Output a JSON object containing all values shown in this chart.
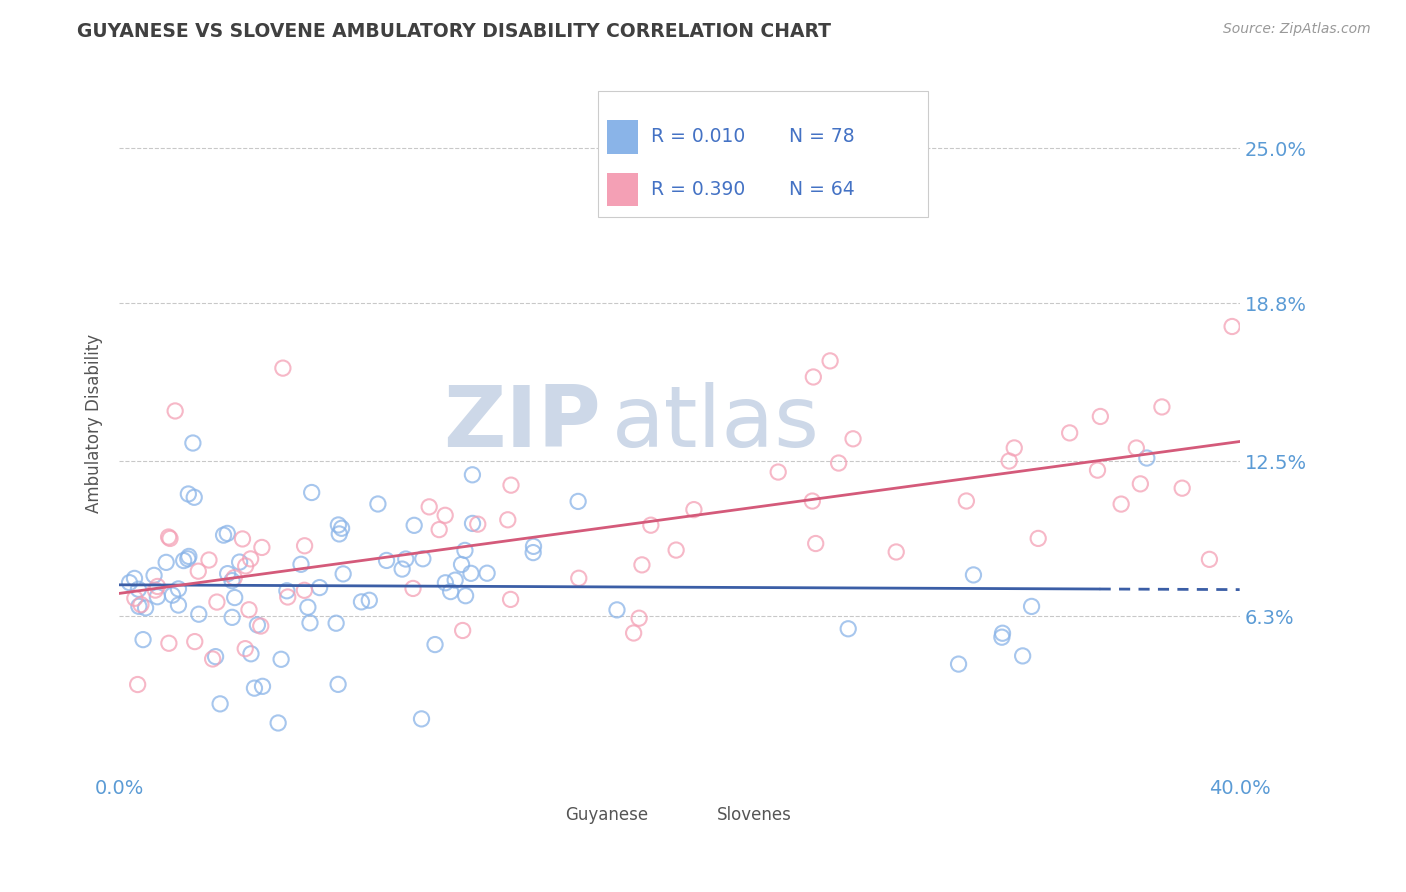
{
  "title": "GUYANESE VS SLOVENE AMBULATORY DISABILITY CORRELATION CHART",
  "source_text": "Source: ZipAtlas.com",
  "ylabel": "Ambulatory Disability",
  "xlim": [
    0.0,
    0.4
  ],
  "ylim": [
    0.0,
    0.28
  ],
  "yticks": [
    0.063,
    0.125,
    0.188,
    0.25
  ],
  "ytick_labels": [
    "6.3%",
    "12.5%",
    "18.8%",
    "25.0%"
  ],
  "xticks": [
    0.0,
    0.4
  ],
  "xtick_labels": [
    "0.0%",
    "40.0%"
  ],
  "series1_name": "Guyanese",
  "series1_color": "#8ab4e8",
  "series1_R": 0.01,
  "series1_N": 78,
  "series2_name": "Slovenes",
  "series2_color": "#f4a0b5",
  "series2_R": 0.39,
  "series2_N": 64,
  "trend1_color": "#3b5ea6",
  "trend2_color": "#d45a7a",
  "background_color": "#ffffff",
  "watermark": "ZIPatlas",
  "watermark_color": "#cdd8e8",
  "title_color": "#404040",
  "axis_label_color": "#555555",
  "tick_label_color": "#5b9bd5",
  "grid_color": "#bbbbbb",
  "legend_color": "#4472c4",
  "seed": 42
}
